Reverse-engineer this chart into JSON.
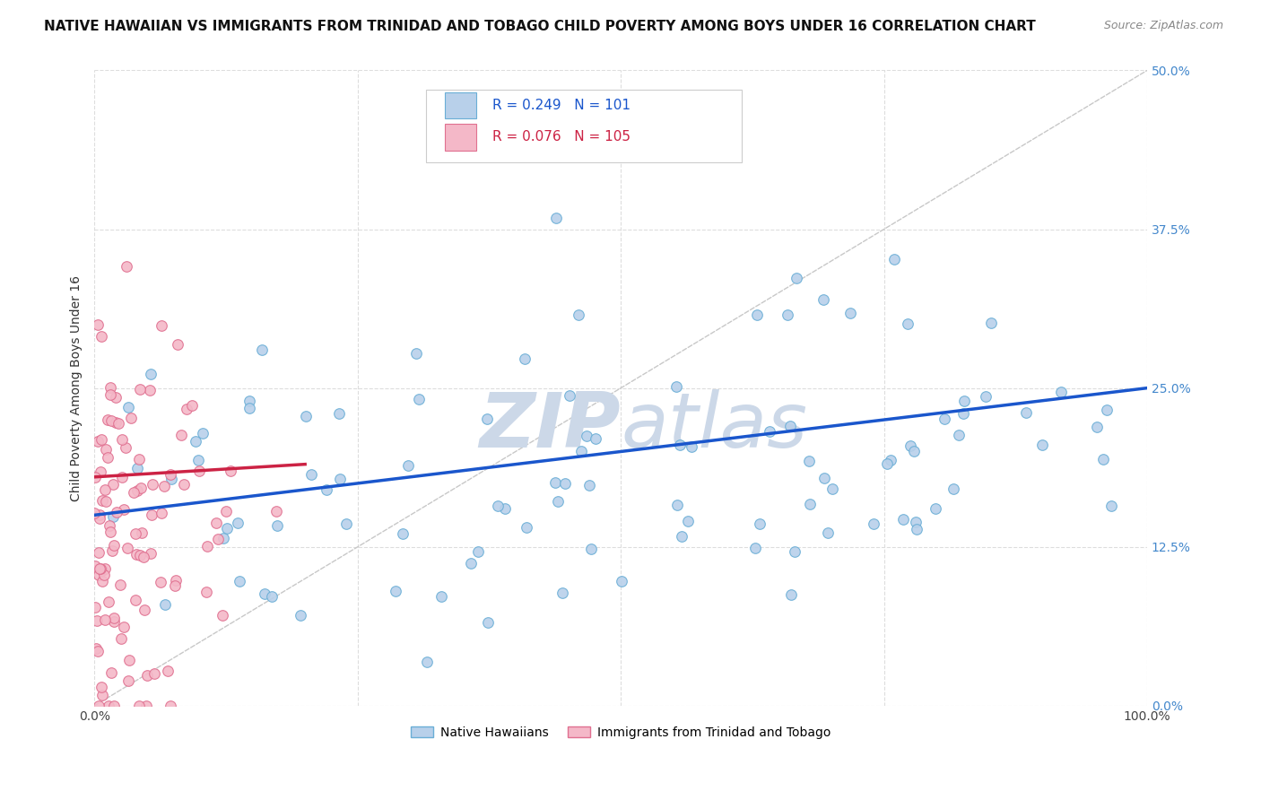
{
  "title": "NATIVE HAWAIIAN VS IMMIGRANTS FROM TRINIDAD AND TOBAGO CHILD POVERTY AMONG BOYS UNDER 16 CORRELATION CHART",
  "source": "Source: ZipAtlas.com",
  "ylabel": "Child Poverty Among Boys Under 16",
  "blue_R": 0.249,
  "blue_N": 101,
  "pink_R": 0.076,
  "pink_N": 105,
  "blue_color": "#b8d0ea",
  "blue_edge_color": "#6aaed6",
  "pink_color": "#f4b8c8",
  "pink_edge_color": "#e07090",
  "blue_line_color": "#1a56cc",
  "pink_line_color": "#cc2244",
  "diagonal_color": "#c8c8c8",
  "legend_label_blue": "Native Hawaiians",
  "legend_label_pink": "Immigrants from Trinidad and Tobago",
  "title_fontsize": 11,
  "source_fontsize": 9,
  "watermark_color": "#ccd8e8",
  "marker_size": 70,
  "xlim": [
    0,
    100
  ],
  "ylim": [
    0,
    50
  ],
  "ytick_values": [
    0,
    12.5,
    25.0,
    37.5,
    50.0
  ],
  "right_ytick_color": "#4488cc",
  "grid_color": "#dddddd"
}
